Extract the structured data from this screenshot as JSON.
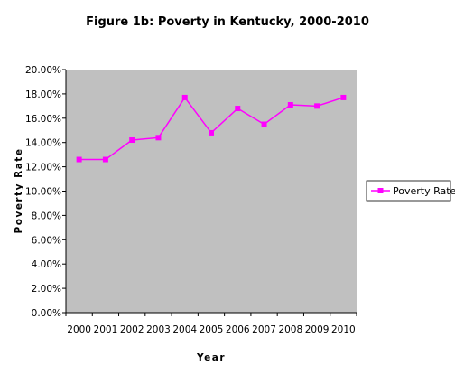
{
  "chart_data": {
    "type": "line",
    "title": "Figure 1b: Poverty in Kentucky, 2000-2010",
    "xlabel": "Year",
    "ylabel": "Poverty Rate",
    "categories": [
      "2000",
      "2001",
      "2002",
      "2003",
      "2004",
      "2005",
      "2006",
      "2007",
      "2008",
      "2009",
      "2010"
    ],
    "series": [
      {
        "name": "Poverty Rate",
        "values": [
          0.126,
          0.126,
          0.142,
          0.144,
          0.177,
          0.148,
          0.168,
          0.155,
          0.171,
          0.17,
          0.177
        ]
      }
    ],
    "ylim": [
      0,
      0.2
    ],
    "yticks": [
      "0.00%",
      "2.00%",
      "4.00%",
      "6.00%",
      "8.00%",
      "10.00%",
      "12.00%",
      "14.00%",
      "16.00%",
      "18.00%",
      "20.00%"
    ],
    "legend_position": "right",
    "grid": false,
    "colors": {
      "plot_background": "#c0c0c0",
      "series": "#ff00ff",
      "axis": "#000000"
    }
  }
}
